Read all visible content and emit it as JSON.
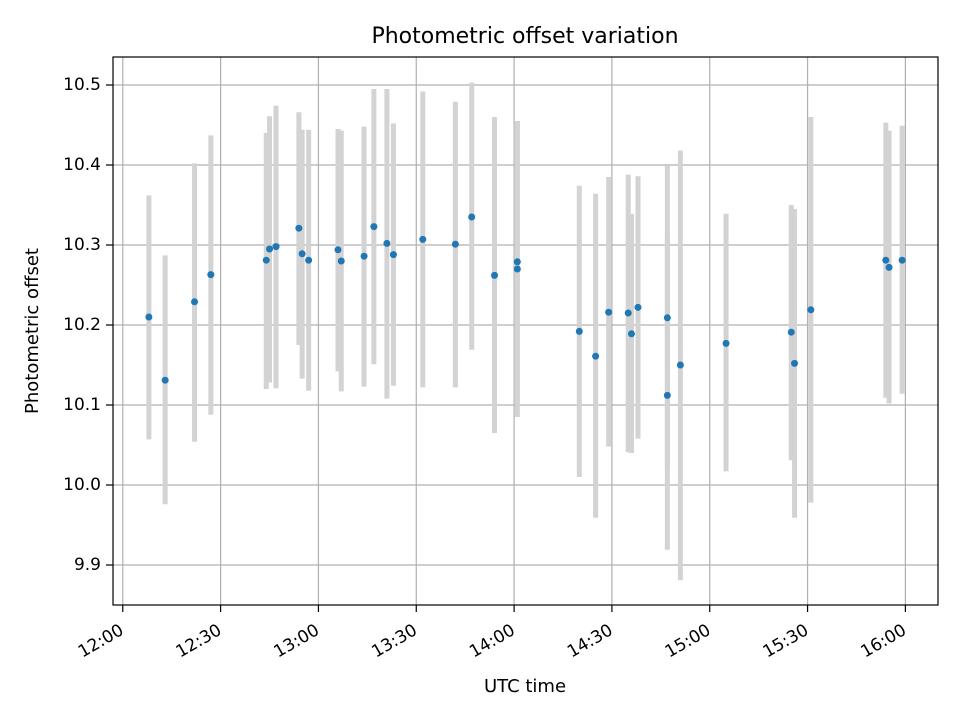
{
  "chart_data": {
    "type": "scatter",
    "title": "Photometric offset variation",
    "xlabel": "UTC time",
    "ylabel": "Photometric offset",
    "x_unit": "HH:MM UTC",
    "xlim": [
      "11:57",
      "16:10"
    ],
    "ylim": [
      9.85,
      10.535
    ],
    "x_ticks": [
      "12:00",
      "12:30",
      "13:00",
      "13:30",
      "14:00",
      "14:30",
      "15:00",
      "15:30",
      "16:00"
    ],
    "y_ticks": [
      9.9,
      10.0,
      10.1,
      10.2,
      10.3,
      10.4,
      10.5
    ],
    "grid": true,
    "legend": "none",
    "colors": {
      "point": "#1f77b4",
      "errorbar": "#d3d3d3",
      "grid": "#b0b0b0"
    },
    "points": [
      {
        "x": "12:08",
        "y": 10.21,
        "ylow": 10.057,
        "yhigh": 10.362
      },
      {
        "x": "12:13",
        "y": 10.131,
        "ylow": 9.976,
        "yhigh": 10.287
      },
      {
        "x": "12:22",
        "y": 10.229,
        "ylow": 10.054,
        "yhigh": 10.402
      },
      {
        "x": "12:27",
        "y": 10.263,
        "ylow": 10.088,
        "yhigh": 10.437
      },
      {
        "x": "12:44",
        "y": 10.281,
        "ylow": 10.12,
        "yhigh": 10.44
      },
      {
        "x": "12:45",
        "y": 10.295,
        "ylow": 10.128,
        "yhigh": 10.461
      },
      {
        "x": "12:47",
        "y": 10.298,
        "ylow": 10.121,
        "yhigh": 10.474
      },
      {
        "x": "12:54",
        "y": 10.321,
        "ylow": 10.175,
        "yhigh": 10.466
      },
      {
        "x": "12:55",
        "y": 10.289,
        "ylow": 10.133,
        "yhigh": 10.444
      },
      {
        "x": "12:57",
        "y": 10.281,
        "ylow": 10.118,
        "yhigh": 10.444
      },
      {
        "x": "13:06",
        "y": 10.294,
        "ylow": 10.142,
        "yhigh": 10.445
      },
      {
        "x": "13:07",
        "y": 10.28,
        "ylow": 10.117,
        "yhigh": 10.443
      },
      {
        "x": "13:14",
        "y": 10.286,
        "ylow": 10.123,
        "yhigh": 10.448
      },
      {
        "x": "13:17",
        "y": 10.323,
        "ylow": 10.151,
        "yhigh": 10.495
      },
      {
        "x": "13:21",
        "y": 10.302,
        "ylow": 10.108,
        "yhigh": 10.495
      },
      {
        "x": "13:23",
        "y": 10.288,
        "ylow": 10.124,
        "yhigh": 10.452
      },
      {
        "x": "13:32",
        "y": 10.307,
        "ylow": 10.122,
        "yhigh": 10.492
      },
      {
        "x": "13:42",
        "y": 10.301,
        "ylow": 10.122,
        "yhigh": 10.479
      },
      {
        "x": "13:47",
        "y": 10.335,
        "ylow": 10.169,
        "yhigh": 10.503
      },
      {
        "x": "13:54",
        "y": 10.262,
        "ylow": 10.065,
        "yhigh": 10.46
      },
      {
        "x": "14:01",
        "y": 10.279,
        "ylow": 10.103,
        "yhigh": 10.455
      },
      {
        "x": "14:01",
        "y": 10.27,
        "ylow": 10.085,
        "yhigh": 10.455
      },
      {
        "x": "14:20",
        "y": 10.192,
        "ylow": 10.01,
        "yhigh": 10.374
      },
      {
        "x": "14:25",
        "y": 10.161,
        "ylow": 9.959,
        "yhigh": 10.364
      },
      {
        "x": "14:29",
        "y": 10.216,
        "ylow": 10.048,
        "yhigh": 10.385
      },
      {
        "x": "14:35",
        "y": 10.215,
        "ylow": 10.041,
        "yhigh": 10.388
      },
      {
        "x": "14:36",
        "y": 10.189,
        "ylow": 10.04,
        "yhigh": 10.339
      },
      {
        "x": "14:38",
        "y": 10.222,
        "ylow": 10.058,
        "yhigh": 10.386
      },
      {
        "x": "14:47",
        "y": 10.209,
        "ylow": 10.019,
        "yhigh": 10.399
      },
      {
        "x": "14:47",
        "y": 10.112,
        "ylow": 9.919,
        "yhigh": 10.308
      },
      {
        "x": "14:51",
        "y": 10.15,
        "ylow": 9.881,
        "yhigh": 10.418
      },
      {
        "x": "15:05",
        "y": 10.177,
        "ylow": 10.017,
        "yhigh": 10.339
      },
      {
        "x": "15:25",
        "y": 10.191,
        "ylow": 10.031,
        "yhigh": 10.35
      },
      {
        "x": "15:26",
        "y": 10.152,
        "ylow": 9.959,
        "yhigh": 10.345
      },
      {
        "x": "15:31",
        "y": 10.219,
        "ylow": 9.978,
        "yhigh": 10.46
      },
      {
        "x": "15:54",
        "y": 10.281,
        "ylow": 10.109,
        "yhigh": 10.453
      },
      {
        "x": "15:55",
        "y": 10.272,
        "ylow": 10.102,
        "yhigh": 10.443
      },
      {
        "x": "15:59",
        "y": 10.281,
        "ylow": 10.114,
        "yhigh": 10.449
      }
    ]
  }
}
